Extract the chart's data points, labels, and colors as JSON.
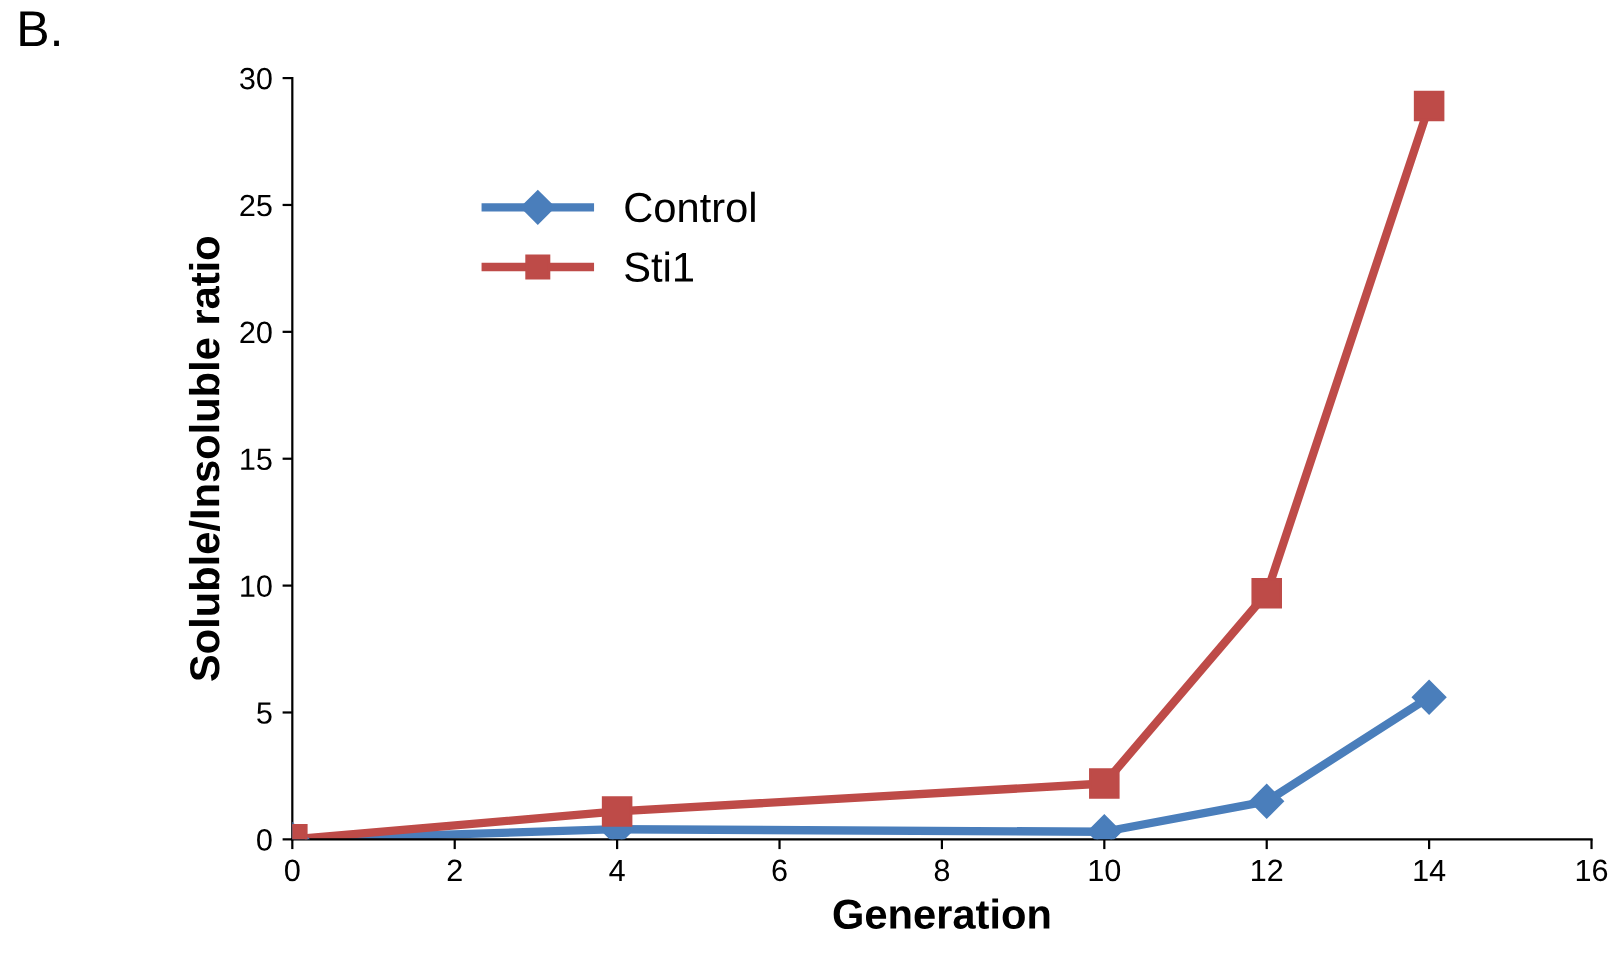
{
  "chart_data": {
    "type": "line",
    "xlabel": "Generation",
    "ylabel": "Soluble/Insoluble ratio",
    "annotations": [
      "B."
    ],
    "x": [
      0,
      4,
      10,
      12,
      14
    ],
    "series": [
      {
        "name": "Control",
        "color": "#4a7ebb",
        "values": [
          0,
          0.4,
          0.3,
          1.5,
          5.6
        ],
        "marker": "diamond"
      },
      {
        "name": "Sti1",
        "color": "#be4b48",
        "values": [
          0,
          1.1,
          2.2,
          9.7,
          28.9
        ],
        "marker": "square"
      }
    ],
    "xlim": [
      0,
      16
    ],
    "xticks": [
      0,
      2,
      4,
      6,
      8,
      10,
      12,
      14,
      16
    ],
    "ylim": [
      0,
      30
    ],
    "yticks": [
      0,
      5,
      10,
      15,
      20,
      25,
      30
    ],
    "grid": false,
    "legend": "top left",
    "line_style": "solid"
  }
}
